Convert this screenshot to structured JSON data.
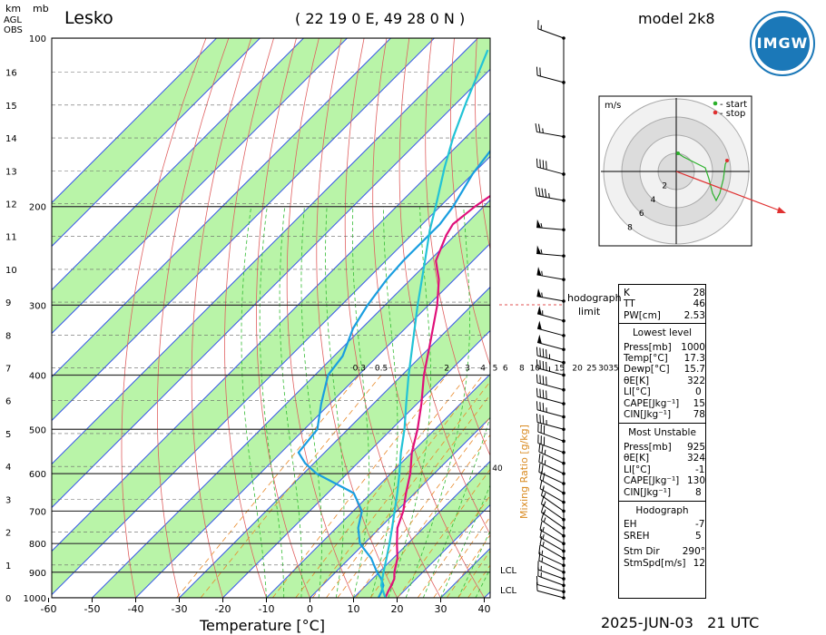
{
  "header": {
    "station": "Lesko",
    "coords": "( 22 19 0 E, 49 28 0 N )",
    "model": "model 2k8",
    "logo_text": "IMGW",
    "unit_km": "km",
    "unit_mb": "mb",
    "agl": "AGL",
    "obs": "OBS",
    "date_time": "2025-JUN-03   21 UTC"
  },
  "chart_data": {
    "type": "line",
    "xlabel": "Temperature [°C]",
    "x_ticks": [
      -60,
      -50,
      -40,
      -30,
      -20,
      -10,
      0,
      10,
      20,
      30,
      40
    ],
    "pressure_ticks": [
      100,
      200,
      300,
      400,
      500,
      600,
      700,
      800,
      900,
      1000
    ],
    "height_ticks_km": [
      0,
      1,
      2,
      3,
      4,
      5,
      6,
      7,
      8,
      9,
      10,
      11,
      12,
      13,
      14,
      15,
      16
    ],
    "mixing_ratio_label": "Mixing Ratio [g/kg]",
    "mixing_ratio_values": [
      "0.3",
      "0.5",
      "2",
      "3",
      "4",
      "5",
      "6",
      "8",
      "10",
      "15",
      "20",
      "25",
      "30",
      "35"
    ],
    "mixing_ratio_40": "40",
    "lcl_label": "LCL",
    "series": [
      {
        "name": "Temperature",
        "color": "#e0107a",
        "points": [
          [
            1000,
            17.3
          ],
          [
            975,
            16.5
          ],
          [
            950,
            15.8
          ],
          [
            925,
            15.0
          ],
          [
            900,
            13.5
          ],
          [
            850,
            11.0
          ],
          [
            800,
            7.5
          ],
          [
            750,
            4.0
          ],
          [
            700,
            1.5
          ],
          [
            650,
            -2.0
          ],
          [
            600,
            -5.5
          ],
          [
            550,
            -10.0
          ],
          [
            500,
            -14.0
          ],
          [
            450,
            -19.0
          ],
          [
            400,
            -25.0
          ],
          [
            350,
            -31.0
          ],
          [
            300,
            -38.0
          ],
          [
            270,
            -43.5
          ],
          [
            250,
            -48.5
          ],
          [
            225,
            -52.0
          ],
          [
            215,
            -53.0
          ],
          [
            200,
            -52.0
          ],
          [
            170,
            -48.0
          ],
          [
            150,
            -44.0
          ],
          [
            125,
            -41.0
          ],
          [
            100,
            -38.0
          ]
        ]
      },
      {
        "name": "Dewpoint",
        "color": "#1a9ee0",
        "points": [
          [
            1000,
            15.7
          ],
          [
            975,
            15.0
          ],
          [
            950,
            14.0
          ],
          [
            925,
            12.0
          ],
          [
            900,
            9.5
          ],
          [
            850,
            5.0
          ],
          [
            800,
            -1.0
          ],
          [
            750,
            -5.0
          ],
          [
            700,
            -8.0
          ],
          [
            650,
            -14.0
          ],
          [
            600,
            -27.0
          ],
          [
            575,
            -32.0
          ],
          [
            550,
            -36.0
          ],
          [
            500,
            -37.0
          ],
          [
            450,
            -42.0
          ],
          [
            400,
            -47.0
          ],
          [
            370,
            -48.0
          ],
          [
            330,
            -52.0
          ],
          [
            300,
            -54.0
          ],
          [
            270,
            -55.5
          ],
          [
            250,
            -56.0
          ],
          [
            215,
            -56.0
          ],
          [
            200,
            -57.0
          ],
          [
            175,
            -60.0
          ],
          [
            150,
            -62.0
          ],
          [
            130,
            -64.0
          ],
          [
            115,
            -66.0
          ],
          [
            100,
            -67.0
          ]
        ]
      },
      {
        "name": "Parcel",
        "color": "#22c3d6",
        "points": [
          [
            1000,
            17.3
          ],
          [
            950,
            13.5
          ],
          [
            900,
            11.0
          ],
          [
            850,
            8.5
          ],
          [
            800,
            5.8
          ],
          [
            750,
            2.8
          ],
          [
            700,
            -0.5
          ],
          [
            650,
            -4.0
          ],
          [
            600,
            -8.0
          ],
          [
            550,
            -12.5
          ],
          [
            500,
            -17.0
          ],
          [
            450,
            -22.5
          ],
          [
            400,
            -28.5
          ],
          [
            350,
            -35.0
          ],
          [
            300,
            -42.5
          ],
          [
            250,
            -51.0
          ],
          [
            220,
            -57.0
          ],
          [
            200,
            -61.0
          ],
          [
            170,
            -68.0
          ],
          [
            150,
            -73.0
          ],
          [
            130,
            -78.0
          ],
          [
            115,
            -82.0
          ],
          [
            105,
            -85.0
          ]
        ]
      }
    ]
  },
  "wind_profile": {
    "barbs": [
      {
        "p": 100,
        "dir": 290,
        "spd": 15
      },
      {
        "p": 120,
        "dir": 285,
        "spd": 20
      },
      {
        "p": 150,
        "dir": 280,
        "spd": 25
      },
      {
        "p": 175,
        "dir": 285,
        "spd": 40
      },
      {
        "p": 195,
        "dir": 280,
        "spd": 45
      },
      {
        "p": 220,
        "dir": 275,
        "spd": 55
      },
      {
        "p": 245,
        "dir": 275,
        "spd": 55
      },
      {
        "p": 270,
        "dir": 280,
        "spd": 55
      },
      {
        "p": 295,
        "dir": 280,
        "spd": 55
      },
      {
        "p": 320,
        "dir": 285,
        "spd": 55
      },
      {
        "p": 340,
        "dir": 285,
        "spd": 50
      },
      {
        "p": 360,
        "dir": 285,
        "spd": 50
      },
      {
        "p": 380,
        "dir": 285,
        "spd": 45
      },
      {
        "p": 400,
        "dir": 285,
        "spd": 45
      },
      {
        "p": 425,
        "dir": 285,
        "spd": 40
      },
      {
        "p": 450,
        "dir": 285,
        "spd": 40
      },
      {
        "p": 475,
        "dir": 285,
        "spd": 35
      },
      {
        "p": 500,
        "dir": 285,
        "spd": 35
      },
      {
        "p": 525,
        "dir": 290,
        "spd": 30
      },
      {
        "p": 550,
        "dir": 290,
        "spd": 30
      },
      {
        "p": 575,
        "dir": 295,
        "spd": 25
      },
      {
        "p": 600,
        "dir": 295,
        "spd": 25
      },
      {
        "p": 625,
        "dir": 295,
        "spd": 20
      },
      {
        "p": 650,
        "dir": 300,
        "spd": 20
      },
      {
        "p": 675,
        "dir": 300,
        "spd": 15
      },
      {
        "p": 700,
        "dir": 305,
        "spd": 15
      },
      {
        "p": 725,
        "dir": 305,
        "spd": 15
      },
      {
        "p": 750,
        "dir": 305,
        "spd": 15
      },
      {
        "p": 775,
        "dir": 305,
        "spd": 15
      },
      {
        "p": 800,
        "dir": 300,
        "spd": 15
      },
      {
        "p": 825,
        "dir": 300,
        "spd": 15
      },
      {
        "p": 850,
        "dir": 300,
        "spd": 15
      },
      {
        "p": 875,
        "dir": 295,
        "spd": 15
      },
      {
        "p": 900,
        "dir": 295,
        "spd": 15
      },
      {
        "p": 925,
        "dir": 290,
        "spd": 15
      },
      {
        "p": 950,
        "dir": 290,
        "spd": 15
      },
      {
        "p": 975,
        "dir": 285,
        "spd": 10
      },
      {
        "p": 1000,
        "dir": 285,
        "spd": 10
      }
    ],
    "limit_label": "hodograph\nlimit"
  },
  "hodograph": {
    "unit": "m/s",
    "legend_start": "- start",
    "legend_stop": "- stop",
    "ring_labels": [
      "2",
      "4",
      "6",
      "8"
    ],
    "trace": [
      [
        0.5,
        2.5
      ],
      [
        2,
        2
      ],
      [
        4,
        1.5
      ],
      [
        6,
        1
      ],
      [
        8,
        0.5
      ],
      [
        9,
        -1
      ],
      [
        10,
        -3
      ],
      [
        11,
        -4
      ],
      [
        12,
        -3
      ],
      [
        13,
        -1
      ],
      [
        13.5,
        1
      ],
      [
        14,
        1.5
      ]
    ],
    "storm_motion_arrow": [
      [
        0,
        0
      ],
      [
        28,
        -13
      ]
    ]
  },
  "indices": {
    "top": [
      {
        "k": "K",
        "v": "28"
      },
      {
        "k": "TT",
        "v": "46"
      },
      {
        "k": "PW[cm]",
        "v": "2.53"
      }
    ],
    "lowest_title": "Lowest level",
    "lowest": [
      {
        "k": "Press[mb]",
        "v": "1000"
      },
      {
        "k": "Temp[°C]",
        "v": "17.3"
      },
      {
        "k": "Dewp[°C]",
        "v": "15.7"
      },
      {
        "k": "θE[K]",
        "v": "322"
      },
      {
        "k": "LI[°C]",
        "v": "0"
      },
      {
        "k": "CAPE[Jkg⁻¹]",
        "v": "15"
      },
      {
        "k": "CIN[Jkg⁻¹]",
        "v": "78"
      }
    ],
    "mu_title": "Most Unstable",
    "mu": [
      {
        "k": "Press[mb]",
        "v": "925"
      },
      {
        "k": "θE[K]",
        "v": "324"
      },
      {
        "k": "LI[°C]",
        "v": "-1"
      },
      {
        "k": "CAPE[Jkg⁻¹]",
        "v": "130"
      },
      {
        "k": "CIN[Jkg⁻¹]",
        "v": "8"
      }
    ],
    "hodo_title": "Hodograph",
    "hodo": [
      {
        "k": "EH",
        "v": "-7"
      },
      {
        "k": "SREH",
        "v": "5"
      },
      {
        "k": "Stm Dir",
        "v": "290°"
      },
      {
        "k": "StmSpd[m/s]",
        "v": "12"
      }
    ]
  },
  "colors": {
    "green": "#b9f4a8",
    "iso_red": "#e34a3a",
    "iso_blue": "#3a5ae8",
    "dry_adiabat": "#e06060",
    "moist": "#33bb33",
    "mixr": "#e88a2a"
  }
}
